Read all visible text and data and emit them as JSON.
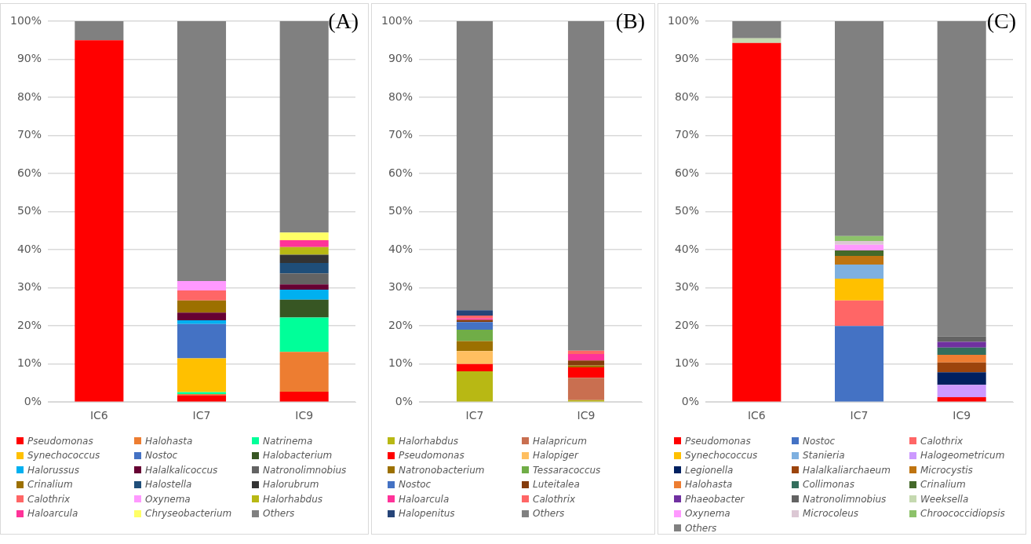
{
  "chart_data": [
    {
      "type": "bar",
      "title": "(A)",
      "stacked": true,
      "categories": [
        "IC6",
        "IC7",
        "IC9"
      ],
      "ylim": [
        0,
        100
      ],
      "yticks": [
        {
          "value": 0,
          "label": "0%"
        },
        {
          "value": 10,
          "label": "10%"
        },
        {
          "value": 20,
          "label": "20%"
        },
        {
          "value": 30,
          "label": "30%"
        },
        {
          "value": 40,
          "label": "40%"
        },
        {
          "value": 50,
          "label": "50%"
        },
        {
          "value": 60,
          "label": "60%"
        },
        {
          "value": 70,
          "label": "70%"
        },
        {
          "value": 80,
          "label": "80%"
        },
        {
          "value": 90,
          "label": "90%"
        },
        {
          "value": 100,
          "label": "100%"
        }
      ],
      "grid": "y",
      "legend": "bottom",
      "series": [
        {
          "name": "Pseudomonas",
          "color": "#ff0000",
          "values": [
            95,
            1.8,
            2.7
          ]
        },
        {
          "name": "Halohasta",
          "color": "#ed7d31",
          "values": [
            0,
            0.3,
            10.5
          ]
        },
        {
          "name": "Natrinema",
          "color": "#00ff99",
          "values": [
            0,
            0.5,
            9
          ]
        },
        {
          "name": "Synechococcus",
          "color": "#ffc000",
          "values": [
            0,
            8.9,
            0
          ]
        },
        {
          "name": "Nostoc",
          "color": "#4472c4",
          "values": [
            0,
            9,
            0
          ]
        },
        {
          "name": "Halobacterium",
          "color": "#375623",
          "values": [
            0,
            0,
            4.7
          ]
        },
        {
          "name": "Halorussus",
          "color": "#00b0f0",
          "values": [
            0,
            1,
            2.6
          ]
        },
        {
          "name": "Halalkalicoccus",
          "color": "#660033",
          "values": [
            0,
            2,
            1.4
          ]
        },
        {
          "name": "Natronolimnobius",
          "color": "#636363",
          "values": [
            0,
            0,
            2.9
          ]
        },
        {
          "name": "Crinalium",
          "color": "#9c7000",
          "values": [
            0,
            3.2,
            0
          ]
        },
        {
          "name": "Halostella",
          "color": "#1f4e79",
          "values": [
            0,
            0,
            2.7
          ]
        },
        {
          "name": "Halorubrum",
          "color": "#333333",
          "values": [
            0,
            0,
            2.2
          ]
        },
        {
          "name": "Calothrix",
          "color": "#ff6666",
          "values": [
            0,
            2.6,
            0
          ]
        },
        {
          "name": "Oxynema",
          "color": "#ff99ff",
          "values": [
            0,
            2.5,
            0
          ]
        },
        {
          "name": "Halorhabdus",
          "color": "#b8b814",
          "values": [
            0,
            0,
            2
          ]
        },
        {
          "name": "Haloarcula",
          "color": "#ff3399",
          "values": [
            0,
            0,
            1.8
          ]
        },
        {
          "name": "Chryseobacterium",
          "color": "#ffff66",
          "values": [
            0,
            0,
            2
          ]
        },
        {
          "name": "Others",
          "color": "#808080",
          "values": [
            5,
            68.2,
            55.6
          ]
        }
      ]
    },
    {
      "type": "bar",
      "title": "(B)",
      "stacked": true,
      "categories": [
        "IC7",
        "IC9"
      ],
      "ylim": [
        0,
        100
      ],
      "yticks": [
        {
          "value": 0,
          "label": "0%"
        },
        {
          "value": 10,
          "label": "10%"
        },
        {
          "value": 20,
          "label": "20%"
        },
        {
          "value": 30,
          "label": "30%"
        },
        {
          "value": 40,
          "label": "40%"
        },
        {
          "value": 50,
          "label": "50%"
        },
        {
          "value": 60,
          "label": "60%"
        },
        {
          "value": 70,
          "label": "70%"
        },
        {
          "value": 80,
          "label": "80%"
        },
        {
          "value": 90,
          "label": "90%"
        },
        {
          "value": 100,
          "label": "100%"
        }
      ],
      "grid": "y",
      "legend": "bottom",
      "series": [
        {
          "name": "Halorhabdus",
          "color": "#b8b814",
          "values": [
            8.1,
            0.5
          ]
        },
        {
          "name": "Halapricum",
          "color": "#c96f50",
          "values": [
            0,
            5.9
          ]
        },
        {
          "name": "Pseudomonas",
          "color": "#ff0000",
          "values": [
            1.9,
            2.7
          ]
        },
        {
          "name": "Halopiger",
          "color": "#ffbf60",
          "values": [
            3.4,
            0
          ]
        },
        {
          "name": "Natronobacterium",
          "color": "#9c7000",
          "values": [
            2.6,
            0.5
          ]
        },
        {
          "name": "Tessaracoccus",
          "color": "#70ad47",
          "values": [
            3,
            0
          ]
        },
        {
          "name": "Nostoc",
          "color": "#4472c4",
          "values": [
            2,
            0
          ]
        },
        {
          "name": "Luteitalea",
          "color": "#843c0c",
          "values": [
            0.6,
            1.3
          ]
        },
        {
          "name": "Haloarcula",
          "color": "#ff3399",
          "values": [
            0.4,
            1.7
          ]
        },
        {
          "name": "Calothrix",
          "color": "#ff6666",
          "values": [
            0.7,
            0.9
          ]
        },
        {
          "name": "Halopenitus",
          "color": "#264478",
          "values": [
            1.4,
            0
          ]
        },
        {
          "name": "Others",
          "color": "#808080",
          "values": [
            75.9,
            86.5
          ]
        }
      ]
    },
    {
      "type": "bar",
      "title": "(C)",
      "stacked": true,
      "categories": [
        "IC6",
        "IC7",
        "IC9"
      ],
      "ylim": [
        0,
        100
      ],
      "yticks": [
        {
          "value": 0,
          "label": "0%"
        },
        {
          "value": 10,
          "label": "10%"
        },
        {
          "value": 20,
          "label": "20%"
        },
        {
          "value": 30,
          "label": "30%"
        },
        {
          "value": 40,
          "label": "40%"
        },
        {
          "value": 50,
          "label": "50%"
        },
        {
          "value": 60,
          "label": "60%"
        },
        {
          "value": 70,
          "label": "70%"
        },
        {
          "value": 80,
          "label": "80%"
        },
        {
          "value": 90,
          "label": "90%"
        },
        {
          "value": 100,
          "label": "100%"
        }
      ],
      "grid": "y",
      "legend": "bottom",
      "series": [
        {
          "name": "Pseudomonas",
          "color": "#ff0000",
          "values": [
            94.3,
            0,
            1.3
          ]
        },
        {
          "name": "Nostoc",
          "color": "#4472c4",
          "values": [
            0,
            20,
            0
          ]
        },
        {
          "name": "Calothrix",
          "color": "#ff6666",
          "values": [
            0,
            6.7,
            0
          ]
        },
        {
          "name": "Synechococcus",
          "color": "#ffc000",
          "values": [
            0,
            5.7,
            0
          ]
        },
        {
          "name": "Stanieria",
          "color": "#7eb0e0",
          "values": [
            0,
            3.7,
            0
          ]
        },
        {
          "name": "Halogeometricum",
          "color": "#cc99ff",
          "values": [
            0,
            0,
            3.2
          ]
        },
        {
          "name": "Legionella",
          "color": "#002060",
          "values": [
            0,
            0,
            3.3
          ]
        },
        {
          "name": "Halalkaliarchaeum",
          "color": "#9c440c",
          "values": [
            0,
            0,
            2.6
          ]
        },
        {
          "name": "Microcystis",
          "color": "#bf7410",
          "values": [
            0,
            2.3,
            0
          ]
        },
        {
          "name": "Halohasta",
          "color": "#ed7d31",
          "values": [
            0,
            0,
            2
          ]
        },
        {
          "name": "Collimonas",
          "color": "#336e5c",
          "values": [
            0,
            0,
            1.9
          ]
        },
        {
          "name": "Crinalium",
          "color": "#44692a",
          "values": [
            0,
            1.4,
            0
          ]
        },
        {
          "name": "Phaeobacter",
          "color": "#7030a0",
          "values": [
            0,
            0,
            1.5
          ]
        },
        {
          "name": "Natronolimnobius",
          "color": "#636363",
          "values": [
            0,
            0,
            1.4
          ]
        },
        {
          "name": "Weeksella",
          "color": "#c5d9b0",
          "values": [
            1.2,
            0,
            0
          ]
        },
        {
          "name": "Oxynema",
          "color": "#ff99ff",
          "values": [
            0,
            1.5,
            0
          ]
        },
        {
          "name": "Microcoleus",
          "color": "#dcc8d4",
          "values": [
            0,
            1,
            0
          ]
        },
        {
          "name": "Chroococcidiopsis",
          "color": "#8dc26a",
          "values": [
            0,
            1.3,
            0
          ]
        },
        {
          "name": "Others",
          "color": "#808080",
          "values": [
            4.5,
            56.4,
            82.8
          ]
        }
      ]
    }
  ]
}
